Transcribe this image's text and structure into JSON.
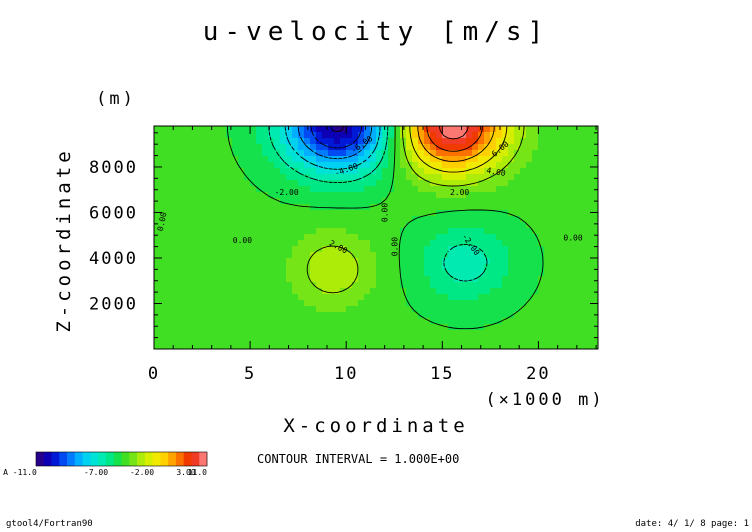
{
  "chart_data": {
    "type": "heatmap",
    "subtype": "filled-contour",
    "title": "u-velocity [m/s]",
    "xlabel": "X-coordinate",
    "x_unit": "(×1000 m)",
    "ylabel": "Z-coordinate",
    "y_unit": "(m)",
    "xlim": [
      0,
      23.1
    ],
    "ylim": [
      0,
      9800
    ],
    "x_ticks": [
      0,
      5,
      10,
      15,
      20
    ],
    "y_ticks": [
      2000,
      4000,
      6000,
      8000
    ],
    "x_tick_labels": [
      "0",
      "5",
      "10",
      "15",
      "20"
    ],
    "y_tick_labels": [
      "2000",
      "4000",
      "6000",
      "8000"
    ],
    "contour_interval": 1.0,
    "contour_interval_text": "CONTOUR INTERVAL = 1.000E+00",
    "color_range": [
      -11,
      11
    ],
    "colorbar_labels": [
      "A -11.0",
      "-7.00",
      "-2.00",
      "3.00",
      "11.0"
    ],
    "contour_labels": [
      {
        "text": "0.00",
        "x": 4.6,
        "y": 4800,
        "rotate": 0
      },
      {
        "text": "0.00",
        "x": 0.4,
        "y": 5600,
        "rotate": -78
      },
      {
        "text": "0.00",
        "x": 12.0,
        "y": 6000,
        "rotate": -90
      },
      {
        "text": "0.00",
        "x": 12.5,
        "y": 4500,
        "rotate": -90
      },
      {
        "text": "0.00",
        "x": 21.8,
        "y": 4900,
        "rotate": 0
      },
      {
        "text": "-2.00",
        "x": 6.9,
        "y": 6900,
        "rotate": 0
      },
      {
        "text": "-4.00",
        "x": 10.0,
        "y": 7900,
        "rotate": -20
      },
      {
        "text": "-6.00",
        "x": 10.8,
        "y": 9000,
        "rotate": -35
      },
      {
        "text": "2.00",
        "x": 9.6,
        "y": 4500,
        "rotate": 28
      },
      {
        "text": "2.00",
        "x": 15.9,
        "y": 6900,
        "rotate": 0
      },
      {
        "text": "4.00",
        "x": 17.8,
        "y": 7800,
        "rotate": 10
      },
      {
        "text": "6.00",
        "x": 18.0,
        "y": 8800,
        "rotate": -40
      },
      {
        "text": "-2.00",
        "x": 16.5,
        "y": 4600,
        "rotate": 55
      }
    ]
  },
  "footer": {
    "left": "gtool4/Fortran90",
    "right": "date: 4/ 1/ 8 page: 1"
  }
}
